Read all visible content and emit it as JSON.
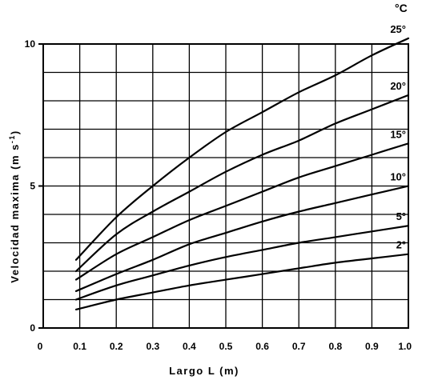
{
  "chart_data": {
    "type": "line",
    "xlabel": "Largo  L  (m)",
    "ylabel": "Velocidad maxima  (m s-1)",
    "ylabel_main": "Velocidad maxima  (m s",
    "ylabel_sup": "-1",
    "ylabel_close": ")",
    "legend_unit": "°C",
    "xlim": [
      0,
      1.0
    ],
    "ylim": [
      0,
      10
    ],
    "grid": true,
    "x_ticks": [
      "0",
      "0.1",
      "0.2",
      "0.3",
      "0.4",
      "0.5",
      "0.6",
      "0.7",
      "0.8",
      "0.9",
      "1.0"
    ],
    "y_ticks": [
      "0",
      "5",
      "10"
    ],
    "y_tick_values": [
      0,
      5,
      10
    ],
    "series": [
      {
        "name": "25°",
        "x": [
          0.09,
          0.2,
          0.3,
          0.4,
          0.5,
          0.6,
          0.7,
          0.8,
          0.9,
          1.0
        ],
        "values": [
          2.4,
          3.9,
          5.0,
          6.0,
          6.9,
          7.6,
          8.3,
          8.9,
          9.6,
          10.2
        ]
      },
      {
        "name": "20°",
        "x": [
          0.09,
          0.2,
          0.3,
          0.4,
          0.5,
          0.6,
          0.7,
          0.8,
          0.9,
          1.0
        ],
        "values": [
          2.0,
          3.3,
          4.1,
          4.8,
          5.5,
          6.1,
          6.6,
          7.2,
          7.7,
          8.2
        ]
      },
      {
        "name": "15°",
        "x": [
          0.09,
          0.2,
          0.3,
          0.4,
          0.5,
          0.6,
          0.7,
          0.8,
          0.9,
          1.0
        ],
        "values": [
          1.7,
          2.6,
          3.2,
          3.8,
          4.3,
          4.8,
          5.3,
          5.7,
          6.1,
          6.5
        ]
      },
      {
        "name": "10°",
        "x": [
          0.09,
          0.2,
          0.3,
          0.4,
          0.5,
          0.6,
          0.7,
          0.8,
          0.9,
          1.0
        ],
        "values": [
          1.3,
          1.9,
          2.4,
          2.95,
          3.35,
          3.75,
          4.1,
          4.4,
          4.7,
          5.0
        ]
      },
      {
        "name": "5°",
        "x": [
          0.09,
          0.2,
          0.3,
          0.4,
          0.5,
          0.6,
          0.7,
          0.8,
          0.9,
          1.0
        ],
        "values": [
          1.0,
          1.5,
          1.85,
          2.2,
          2.5,
          2.75,
          3.0,
          3.2,
          3.4,
          3.6
        ]
      },
      {
        "name": "2°",
        "x": [
          0.09,
          0.2,
          0.3,
          0.4,
          0.5,
          0.6,
          0.7,
          0.8,
          0.9,
          1.0
        ],
        "values": [
          0.65,
          1.0,
          1.25,
          1.5,
          1.7,
          1.9,
          2.1,
          2.3,
          2.45,
          2.6
        ]
      }
    ]
  }
}
